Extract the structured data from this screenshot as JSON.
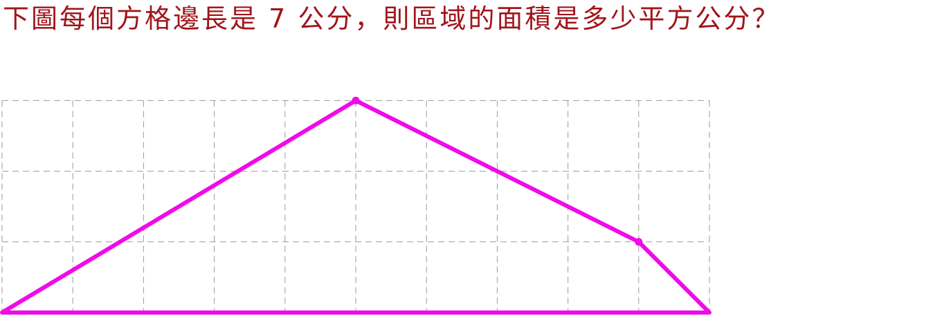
{
  "question": {
    "text": "下圖每個方格邊長是 7 公分，則區域的面積是多少平方公分？"
  },
  "grid": {
    "columns": 10,
    "rows": 3,
    "cell_side_cm": 7,
    "line_color": "#9a9a9a"
  },
  "shape": {
    "color": "#f00be8",
    "vertices": [
      {
        "col": 0,
        "row": 0
      },
      {
        "col": 5,
        "row": 3
      },
      {
        "col": 9,
        "row": 1
      },
      {
        "col": 10,
        "row": 0
      }
    ],
    "marked_vertices": [
      1,
      2
    ]
  },
  "colors": {
    "question_text": "#a0151b"
  }
}
